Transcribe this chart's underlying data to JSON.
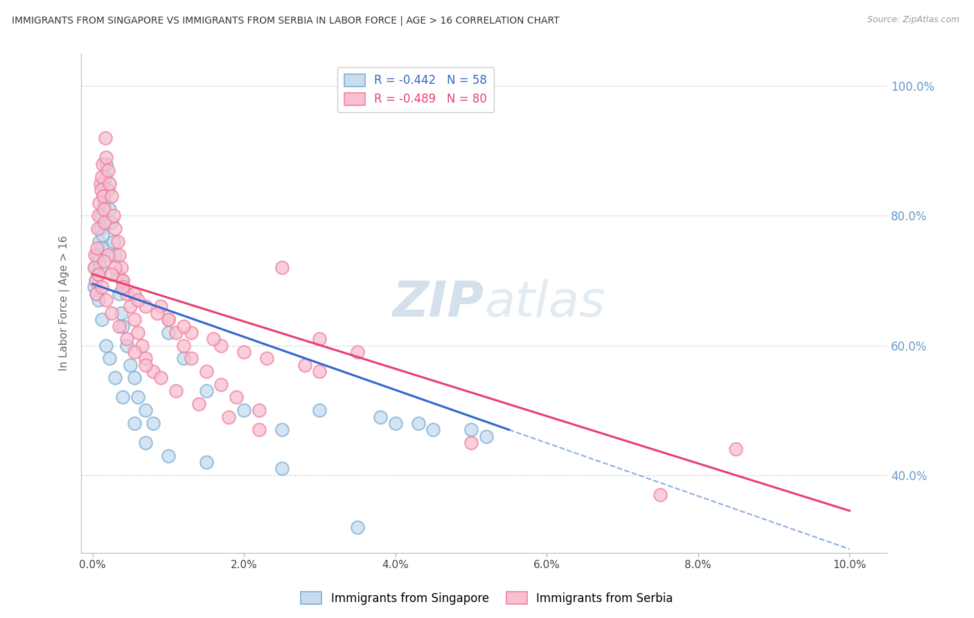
{
  "title": "IMMIGRANTS FROM SINGAPORE VS IMMIGRANTS FROM SERBIA IN LABOR FORCE | AGE > 16 CORRELATION CHART",
  "source": "Source: ZipAtlas.com",
  "ylabel": "In Labor Force | Age > 16",
  "ylabel_ticks": [
    0.4,
    0.6,
    0.8,
    1.0
  ],
  "ylabel_tick_labels": [
    "40.0%",
    "60.0%",
    "80.0%",
    "100.0%"
  ],
  "xlabel_tick_labels": [
    "0.0%",
    "2.0%",
    "4.0%",
    "6.0%",
    "8.0%",
    "10.0%"
  ],
  "xmin": -0.15,
  "xmax": 10.5,
  "ymin": 0.28,
  "ymax": 1.05,
  "singapore_color": "#7bafd4",
  "serbia_color": "#f080a0",
  "legend_singapore": "R = -0.442   N = 58",
  "legend_serbia": "R = -0.489   N = 80",
  "singapore_R": -0.442,
  "singapore_N": 58,
  "serbia_R": -0.489,
  "serbia_N": 80,
  "sg_trend_x0": 0.0,
  "sg_trend_y0": 0.695,
  "sg_trend_x1": 5.5,
  "sg_trend_y1": 0.47,
  "sr_trend_x0": 0.0,
  "sr_trend_y0": 0.71,
  "sr_trend_x1": 10.0,
  "sr_trend_y1": 0.345,
  "singapore_scatter_x": [
    0.02,
    0.03,
    0.04,
    0.05,
    0.06,
    0.07,
    0.08,
    0.09,
    0.1,
    0.1,
    0.11,
    0.12,
    0.13,
    0.14,
    0.15,
    0.15,
    0.16,
    0.17,
    0.18,
    0.2,
    0.22,
    0.25,
    0.28,
    0.3,
    0.32,
    0.35,
    0.38,
    0.4,
    0.45,
    0.5,
    0.55,
    0.6,
    0.7,
    0.8,
    1.0,
    1.2,
    1.5,
    2.0,
    2.5,
    3.0,
    3.8,
    4.0,
    4.3,
    4.5,
    5.0,
    5.2,
    0.08,
    0.12,
    0.18,
    0.22,
    0.3,
    0.4,
    0.55,
    0.7,
    1.0,
    1.5,
    2.5,
    3.5
  ],
  "singapore_scatter_y": [
    0.69,
    0.72,
    0.7,
    0.68,
    0.74,
    0.71,
    0.73,
    0.76,
    0.78,
    0.72,
    0.8,
    0.75,
    0.77,
    0.83,
    0.85,
    0.79,
    0.82,
    0.86,
    0.88,
    0.84,
    0.81,
    0.79,
    0.76,
    0.74,
    0.71,
    0.68,
    0.65,
    0.63,
    0.6,
    0.57,
    0.55,
    0.52,
    0.5,
    0.48,
    0.62,
    0.58,
    0.53,
    0.5,
    0.47,
    0.5,
    0.49,
    0.48,
    0.48,
    0.47,
    0.47,
    0.46,
    0.67,
    0.64,
    0.6,
    0.58,
    0.55,
    0.52,
    0.48,
    0.45,
    0.43,
    0.42,
    0.41,
    0.32
  ],
  "serbia_scatter_x": [
    0.02,
    0.03,
    0.04,
    0.05,
    0.06,
    0.07,
    0.08,
    0.09,
    0.1,
    0.11,
    0.12,
    0.13,
    0.14,
    0.15,
    0.16,
    0.17,
    0.18,
    0.2,
    0.22,
    0.25,
    0.28,
    0.3,
    0.33,
    0.35,
    0.38,
    0.4,
    0.45,
    0.5,
    0.55,
    0.6,
    0.65,
    0.7,
    0.8,
    0.9,
    1.0,
    1.1,
    1.2,
    1.3,
    1.5,
    1.7,
    1.9,
    2.2,
    2.5,
    0.08,
    0.12,
    0.18,
    0.25,
    0.35,
    0.45,
    0.55,
    0.7,
    0.9,
    1.1,
    1.4,
    1.8,
    2.2,
    3.0,
    3.5,
    0.2,
    0.3,
    0.4,
    0.55,
    0.7,
    1.0,
    1.3,
    1.7,
    2.3,
    3.0,
    0.15,
    0.25,
    0.4,
    0.6,
    0.85,
    1.2,
    1.6,
    2.0,
    2.8,
    5.0,
    7.5,
    8.5
  ],
  "serbia_scatter_y": [
    0.72,
    0.74,
    0.7,
    0.68,
    0.75,
    0.78,
    0.8,
    0.82,
    0.85,
    0.84,
    0.86,
    0.88,
    0.83,
    0.81,
    0.79,
    0.92,
    0.89,
    0.87,
    0.85,
    0.83,
    0.8,
    0.78,
    0.76,
    0.74,
    0.72,
    0.7,
    0.68,
    0.66,
    0.64,
    0.62,
    0.6,
    0.58,
    0.56,
    0.66,
    0.64,
    0.62,
    0.6,
    0.58,
    0.56,
    0.54,
    0.52,
    0.5,
    0.72,
    0.71,
    0.69,
    0.67,
    0.65,
    0.63,
    0.61,
    0.59,
    0.57,
    0.55,
    0.53,
    0.51,
    0.49,
    0.47,
    0.61,
    0.59,
    0.74,
    0.72,
    0.7,
    0.68,
    0.66,
    0.64,
    0.62,
    0.6,
    0.58,
    0.56,
    0.73,
    0.71,
    0.69,
    0.67,
    0.65,
    0.63,
    0.61,
    0.59,
    0.57,
    0.45,
    0.37,
    0.44
  ],
  "watermark_text": "ZIPatlas",
  "watermark_zip_color": "#c8d8e8",
  "watermark_atlas_color": "#c8d8e8",
  "background_color": "#ffffff",
  "grid_color": "#cccccc",
  "title_color": "#333333",
  "right_tick_color": "#6699cc"
}
